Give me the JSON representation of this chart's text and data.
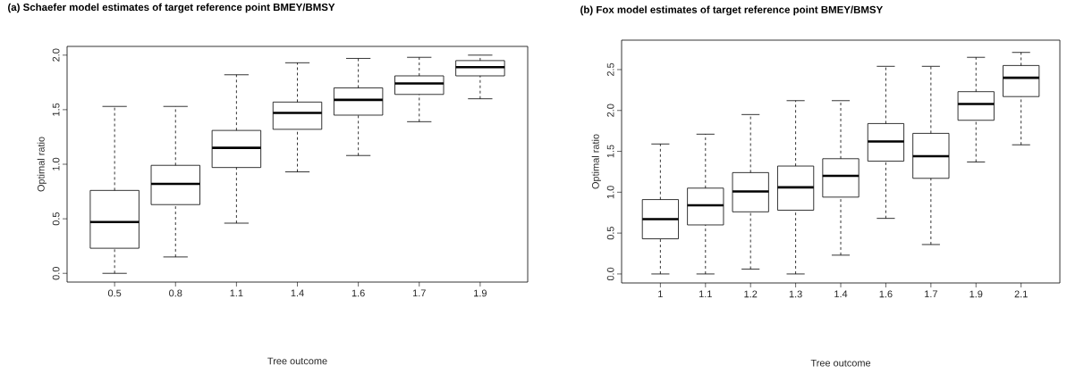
{
  "chart_data": [
    {
      "type": "box",
      "title": "(a) Schaefer model estimates of target reference point BMEY/BMSY",
      "xlabel": "Tree outcome",
      "ylabel": "Optimal ratio",
      "categories": [
        "0.5",
        "0.8",
        "1.1",
        "1.4",
        "1.6",
        "1.7",
        "1.9"
      ],
      "ylim": [
        -0.08,
        2.08
      ],
      "yticks": [
        {
          "value": 0,
          "label": "0.0"
        },
        {
          "value": 0.5,
          "label": "0.5"
        },
        {
          "value": 1,
          "label": "1.0"
        },
        {
          "value": 1.5,
          "label": "1.5"
        },
        {
          "value": 2,
          "label": "2.0"
        }
      ],
      "boxes": [
        {
          "low": 0,
          "q1": 0.23,
          "median": 0.47,
          "q3": 0.76,
          "high": 1.53
        },
        {
          "low": 0.15,
          "q1": 0.63,
          "median": 0.82,
          "q3": 0.99,
          "high": 1.53
        },
        {
          "low": 0.46,
          "q1": 0.97,
          "median": 1.15,
          "q3": 1.31,
          "high": 1.82
        },
        {
          "low": 0.93,
          "q1": 1.32,
          "median": 1.47,
          "q3": 1.57,
          "high": 1.93
        },
        {
          "low": 1.08,
          "q1": 1.45,
          "median": 1.59,
          "q3": 1.7,
          "high": 1.97
        },
        {
          "low": 1.39,
          "q1": 1.64,
          "median": 1.74,
          "q3": 1.81,
          "high": 1.98
        },
        {
          "low": 1.6,
          "q1": 1.81,
          "median": 1.89,
          "q3": 1.95,
          "high": 2.0
        }
      ]
    },
    {
      "type": "box",
      "title": "(b) Fox model estimates of target reference point BMEY/BMSY",
      "xlabel": "Tree outcome",
      "ylabel": "Optimal ratio",
      "categories": [
        "1",
        "1.1",
        "1.2",
        "1.3",
        "1.4",
        "1.6",
        "1.7",
        "1.9",
        "2.1"
      ],
      "ylim": [
        -0.11,
        2.86
      ],
      "yticks": [
        {
          "value": 0,
          "label": "0.0"
        },
        {
          "value": 0.5,
          "label": "0.5"
        },
        {
          "value": 1,
          "label": "1.0"
        },
        {
          "value": 1.5,
          "label": "1.5"
        },
        {
          "value": 2,
          "label": "2.0"
        },
        {
          "value": 2.5,
          "label": "2.5"
        }
      ],
      "boxes": [
        {
          "low": 0,
          "q1": 0.43,
          "median": 0.67,
          "q3": 0.91,
          "high": 1.59
        },
        {
          "low": 0,
          "q1": 0.6,
          "median": 0.84,
          "q3": 1.05,
          "high": 1.71
        },
        {
          "low": 0.06,
          "q1": 0.76,
          "median": 1.01,
          "q3": 1.24,
          "high": 1.95
        },
        {
          "low": 0,
          "q1": 0.78,
          "median": 1.06,
          "q3": 1.32,
          "high": 2.12
        },
        {
          "low": 0.23,
          "q1": 0.94,
          "median": 1.2,
          "q3": 1.41,
          "high": 2.12
        },
        {
          "low": 0.68,
          "q1": 1.38,
          "median": 1.62,
          "q3": 1.84,
          "high": 2.54
        },
        {
          "low": 0.36,
          "q1": 1.17,
          "median": 1.44,
          "q3": 1.72,
          "high": 2.54
        },
        {
          "low": 1.37,
          "q1": 1.88,
          "median": 2.08,
          "q3": 2.23,
          "high": 2.65
        },
        {
          "low": 1.58,
          "q1": 2.17,
          "median": 2.4,
          "q3": 2.55,
          "high": 2.71
        }
      ]
    }
  ]
}
